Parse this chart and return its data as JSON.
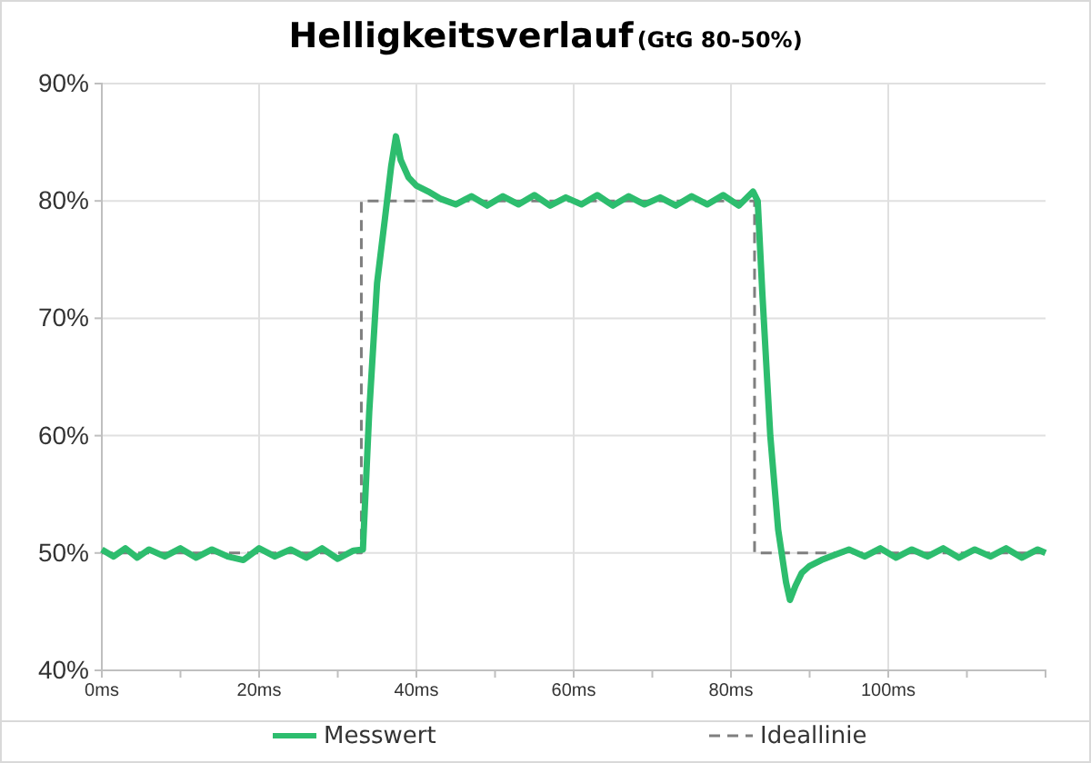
{
  "chart_data": {
    "type": "line",
    "title": "Helligkeitsverlauf",
    "subtitle": "(GtG 80-50%)",
    "xlim": [
      0,
      120
    ],
    "xticks": [
      {
        "value": 0,
        "label": "0ms"
      },
      {
        "value": 10,
        "label": null
      },
      {
        "value": 20,
        "label": "20ms"
      },
      {
        "value": 30,
        "label": null
      },
      {
        "value": 40,
        "label": "40ms"
      },
      {
        "value": 50,
        "label": null
      },
      {
        "value": 60,
        "label": "60ms"
      },
      {
        "value": 70,
        "label": null
      },
      {
        "value": 80,
        "label": "80ms"
      },
      {
        "value": 90,
        "label": null
      },
      {
        "value": 100,
        "label": "100ms"
      },
      {
        "value": 110,
        "label": null
      }
    ],
    "ylim": [
      40,
      90
    ],
    "yticks": [
      {
        "value": 40,
        "label": "40%"
      },
      {
        "value": 50,
        "label": "50%"
      },
      {
        "value": 60,
        "label": "60%"
      },
      {
        "value": 70,
        "label": "70%"
      },
      {
        "value": 80,
        "label": "80%"
      },
      {
        "value": 90,
        "label": "90%"
      }
    ],
    "grid": true,
    "legend": "bottom",
    "series": [
      {
        "name": "Messwert",
        "color": "#2dbd6e",
        "line_style": "solid",
        "x": [
          0,
          1.5,
          3,
          4.5,
          6,
          8,
          10,
          12,
          14,
          16,
          18,
          20,
          22,
          24,
          26,
          28,
          30,
          32,
          33.2,
          34,
          35,
          36,
          36.8,
          37.4,
          38,
          39,
          40,
          41.5,
          43,
          45,
          47,
          49,
          51,
          53,
          55,
          57,
          59,
          61,
          63,
          65,
          67,
          69,
          71,
          73,
          75,
          77,
          79,
          81,
          82.8,
          83.4,
          84,
          85,
          86,
          87,
          87.5,
          88.2,
          89,
          90,
          91.5,
          93,
          95,
          97,
          99,
          101,
          103,
          105,
          107,
          109,
          111,
          113,
          115,
          117,
          119,
          120
        ],
        "values": [
          50.3,
          49.7,
          50.4,
          49.6,
          50.3,
          49.7,
          50.4,
          49.6,
          50.3,
          49.7,
          49.4,
          50.4,
          49.7,
          50.3,
          49.6,
          50.4,
          49.5,
          50.2,
          50.3,
          62,
          73,
          78.5,
          83,
          85.5,
          83.5,
          82,
          81.3,
          80.8,
          80.2,
          79.7,
          80.4,
          79.6,
          80.4,
          79.7,
          80.5,
          79.6,
          80.3,
          79.7,
          80.5,
          79.6,
          80.4,
          79.7,
          80.3,
          79.6,
          80.4,
          79.7,
          80.5,
          79.6,
          80.8,
          80,
          72,
          60,
          52,
          47.5,
          46,
          47.2,
          48.3,
          48.9,
          49.4,
          49.8,
          50.3,
          49.7,
          50.4,
          49.6,
          50.3,
          49.7,
          50.4,
          49.6,
          50.3,
          49.7,
          50.4,
          49.6,
          50.3,
          50
        ]
      },
      {
        "name": "Ideallinie",
        "color": "#7f7f7f",
        "line_style": "dashed",
        "x": [
          0,
          33,
          33,
          83,
          83,
          120
        ],
        "values": [
          50,
          50,
          80,
          80,
          50,
          50
        ]
      }
    ]
  }
}
